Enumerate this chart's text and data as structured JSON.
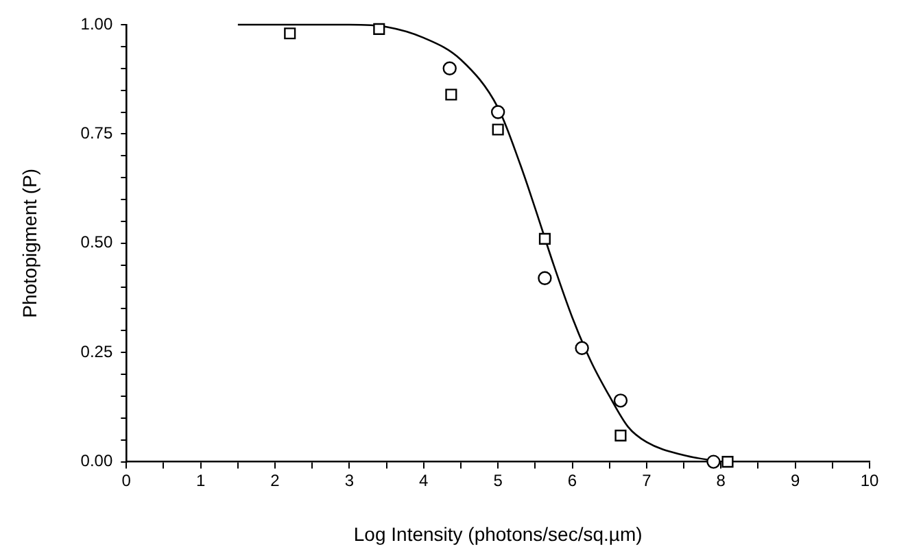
{
  "chart_data": {
    "type": "scatter",
    "xlabel": "Log Intensity (photons/sec/sq.µm)",
    "ylabel": "Photopigment (P)",
    "xlim": [
      0,
      10
    ],
    "ylim": [
      0,
      1
    ],
    "xticks": [
      0,
      {
        "value": 0.5,
        "label": null
      },
      1,
      {
        "value": 1.5,
        "label": null
      },
      2,
      {
        "value": 2.5,
        "label": null
      },
      3,
      {
        "value": 3.5,
        "label": null
      },
      4,
      {
        "value": 4.5,
        "label": null
      },
      5,
      {
        "value": 5.5,
        "label": null
      },
      6,
      {
        "value": 6.5,
        "label": null
      },
      7,
      {
        "value": 7.5,
        "label": null
      },
      8,
      {
        "value": 8.5,
        "label": null
      },
      9,
      {
        "value": 9.5,
        "label": null
      },
      10
    ],
    "yticks": [
      {
        "value": 0,
        "label": "0.00"
      },
      {
        "value": 0.05,
        "label": null
      },
      {
        "value": 0.1,
        "label": null
      },
      {
        "value": 0.15,
        "label": null
      },
      {
        "value": 0.2,
        "label": null
      },
      {
        "value": 0.25,
        "label": "0.25"
      },
      {
        "value": 0.3,
        "label": null
      },
      {
        "value": 0.35,
        "label": null
      },
      {
        "value": 0.4,
        "label": null
      },
      {
        "value": 0.45,
        "label": null
      },
      {
        "value": 0.5,
        "label": "0.50"
      },
      {
        "value": 0.55,
        "label": null
      },
      {
        "value": 0.6,
        "label": null
      },
      {
        "value": 0.65,
        "label": null
      },
      {
        "value": 0.7,
        "label": null
      },
      {
        "value": 0.75,
        "label": "0.75"
      },
      {
        "value": 0.8,
        "label": null
      },
      {
        "value": 0.85,
        "label": null
      },
      {
        "value": 0.9,
        "label": null
      },
      {
        "value": 0.95,
        "label": null
      },
      {
        "value": 1,
        "label": "1.00"
      }
    ],
    "grid": false,
    "legend": false,
    "series": [
      {
        "marker": "circle",
        "color": "#000000",
        "x": [
          4.35,
          5.0,
          5.63,
          6.13,
          6.65,
          7.9
        ],
        "values": [
          0.9,
          0.8,
          0.42,
          0.26,
          0.14,
          0
        ]
      },
      {
        "marker": "square",
        "color": "#000000",
        "x": [
          2.2,
          3.4,
          4.37,
          5.0,
          5.63,
          6.65,
          8.09
        ],
        "values": [
          0.98,
          0.99,
          0.84,
          0.76,
          0.51,
          0.06,
          0
        ]
      },
      {
        "type": "line",
        "marker": "none",
        "color": "#000000",
        "x": [
          1.5,
          3,
          3.5,
          4,
          4.5,
          5,
          5.3,
          5.5,
          5.75,
          6,
          6.25,
          6.5,
          6.75,
          7,
          7.5,
          8
        ],
        "values": [
          1,
          1,
          0.995,
          0.97,
          0.92,
          0.81,
          0.68,
          0.58,
          0.45,
          0.33,
          0.23,
          0.15,
          0.08,
          0.045,
          0.015,
          0
        ]
      }
    ]
  }
}
